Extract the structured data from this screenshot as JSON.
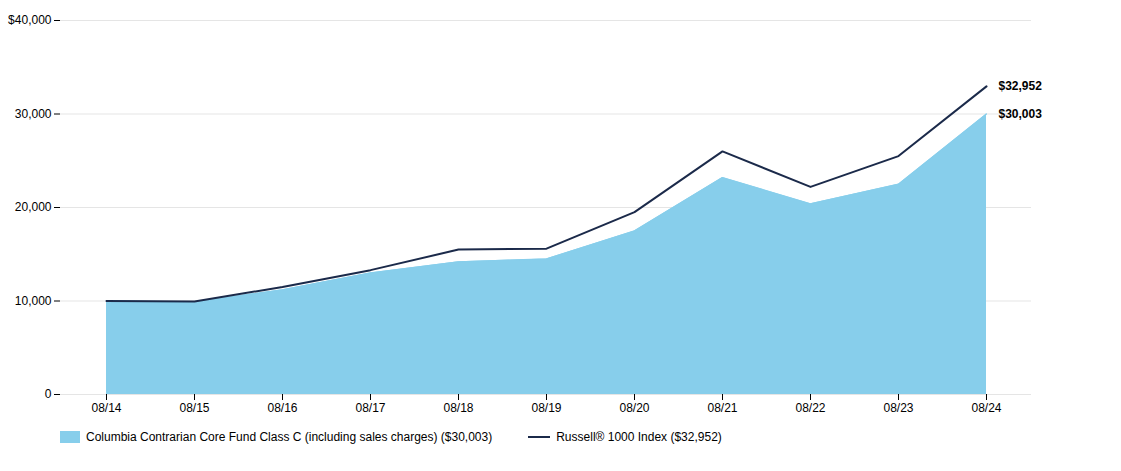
{
  "chart_data": {
    "type": "area",
    "categories": [
      "08/14",
      "08/15",
      "08/16",
      "08/17",
      "08/18",
      "08/19",
      "08/20",
      "08/21",
      "08/22",
      "08/23",
      "08/24"
    ],
    "series": [
      {
        "name": "Columbia Contrarian Core Fund Class C (including sales charges) ($30,003)",
        "type": "area",
        "color": "#87CEEB",
        "values": [
          10000,
          9900,
          11200,
          13000,
          14200,
          14500,
          17500,
          23200,
          20400,
          22500,
          30003
        ]
      },
      {
        "name": "Russell® 1000  Index ($32,952)",
        "type": "line",
        "color": "#1B2A4A",
        "values": [
          10000,
          9950,
          11500,
          13300,
          15500,
          15600,
          19500,
          26000,
          22200,
          25500,
          32952
        ]
      }
    ],
    "ylim": [
      0,
      40000
    ],
    "yticks": [
      0,
      {
        "value": 10000,
        "label": "10,000"
      },
      {
        "value": 20000,
        "label": "20,000"
      },
      {
        "value": 30000,
        "label": "30,000"
      },
      {
        "value": 40000,
        "label": "$40,000"
      }
    ],
    "grid": true,
    "legend": "bottom",
    "annotations": [
      {
        "text": "$32,952",
        "x": "08/24",
        "y": 32952
      },
      {
        "text": "$30,003",
        "x": "08/24",
        "y": 30003
      }
    ]
  }
}
